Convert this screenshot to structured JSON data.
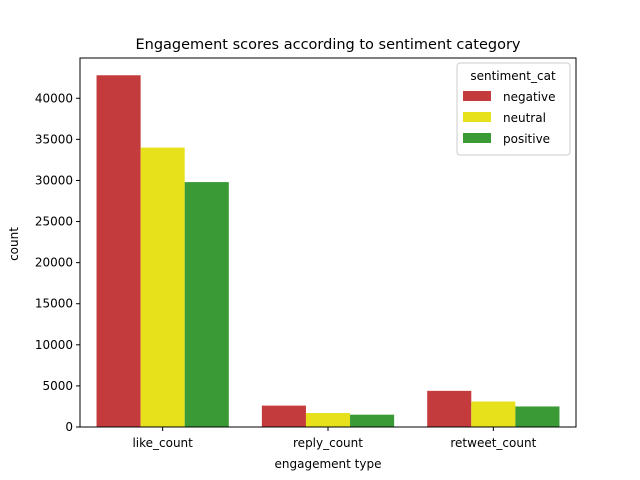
{
  "chart_data": {
    "type": "bar",
    "title": "Engagement scores according to sentiment category",
    "xlabel": "engagement type",
    "ylabel": "count",
    "categories": [
      "like_count",
      "reply_count",
      "retweet_count"
    ],
    "series": [
      {
        "name": "negative",
        "color": "#c43b3d",
        "values": [
          42800,
          2600,
          4400
        ]
      },
      {
        "name": "neutral",
        "color": "#e6e11b",
        "values": [
          34000,
          1700,
          3100
        ]
      },
      {
        "name": "positive",
        "color": "#3a9a35",
        "values": [
          29800,
          1500,
          2500
        ]
      }
    ],
    "ylim": [
      0,
      44900
    ],
    "yticks": [
      0,
      5000,
      10000,
      15000,
      20000,
      25000,
      30000,
      35000,
      40000
    ],
    "grid": false,
    "legend": {
      "title": "sentiment_cat",
      "placement": "top-right"
    }
  }
}
